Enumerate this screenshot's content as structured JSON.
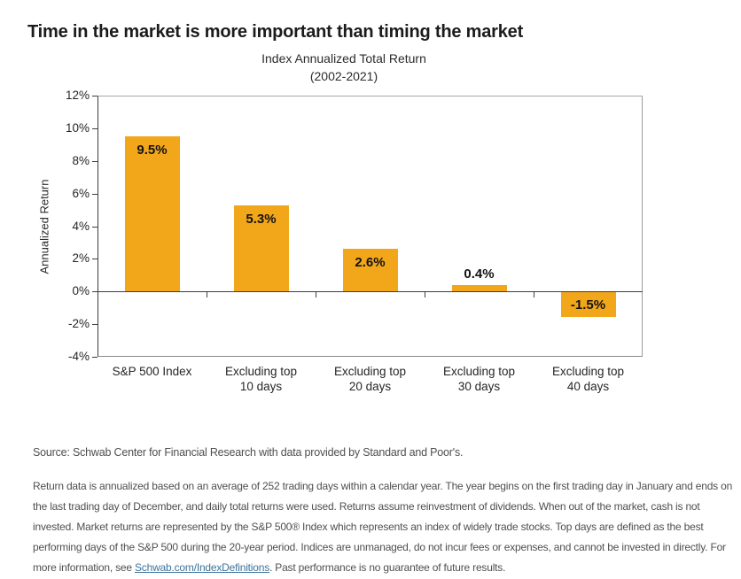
{
  "header": {
    "title": "Time in the market is more important than timing the market"
  },
  "chart_data": {
    "type": "bar",
    "title": "Index Annualized Total Return",
    "subtitle": "(2002-2021)",
    "ylabel": "Annualized Return",
    "xlabel": "",
    "categories": [
      "S&P 500 Index",
      "Excluding top\n10 days",
      "Excluding top\n20 days",
      "Excluding top\n30 days",
      "Excluding top\n40 days"
    ],
    "values": [
      9.5,
      5.3,
      2.6,
      0.4,
      -1.5
    ],
    "labels": [
      "9.5%",
      "5.3%",
      "2.6%",
      "0.4%",
      "-1.5%"
    ],
    "ylim": [
      -4,
      12
    ],
    "ytick_step": 2,
    "ytick_suffix": "%",
    "bar_color": "#F2A61A",
    "grid": false,
    "legend": false
  },
  "footer": {
    "source": "Source: Schwab Center for Financial Research with data provided by Standard and Poor's.",
    "disclaimer_before": "Return data is annualized based on an average of 252 trading days within a calendar year. The year begins on the first trading day in January and ends on the last trading day of December, and daily total returns were used. Returns assume reinvestment of dividends. When out of the market, cash is not invested. Market returns are represented by the S&P 500® Index which represents an index of widely trade stocks. Top days are defined as the best performing days of the S&P 500 during the 20-year period. Indices are unmanaged, do not incur fees or expenses, and cannot be invested in directly. For more information, see ",
    "link_text": "Schwab.com/IndexDefinitions",
    "disclaimer_after": ". Past performance is no guarantee of future results."
  }
}
